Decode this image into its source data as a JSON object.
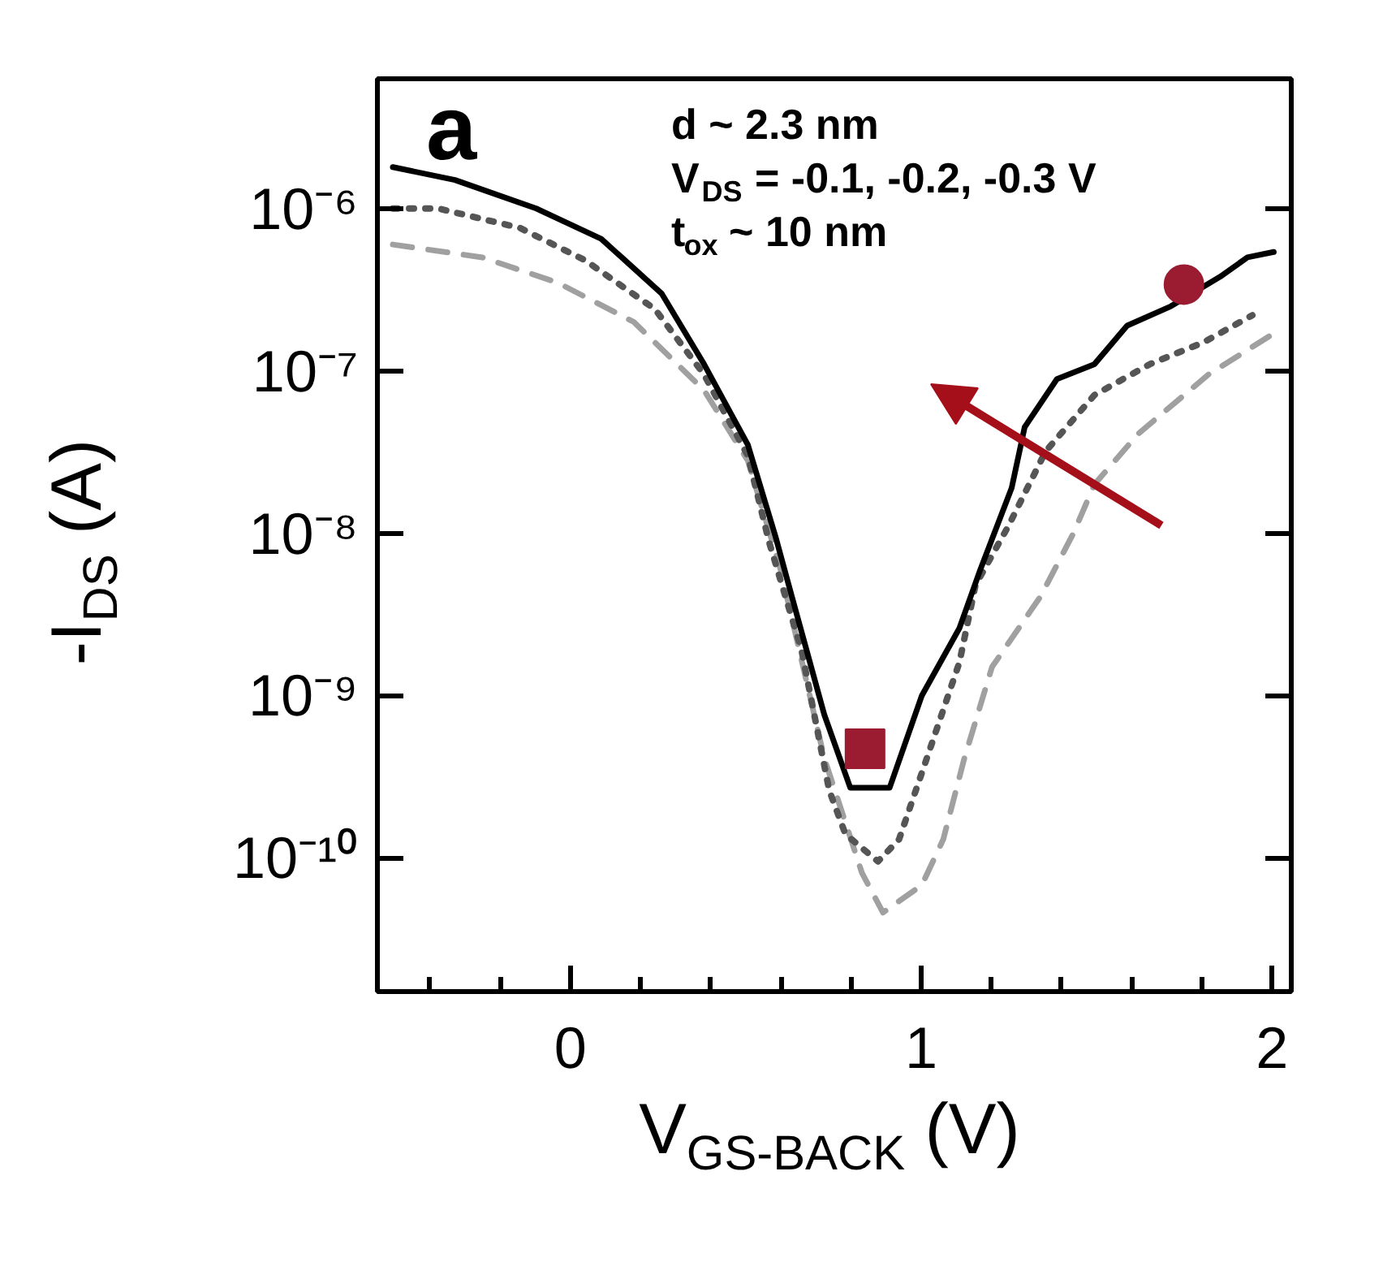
{
  "chart_data": {
    "type": "line",
    "title": "a",
    "xlabel": "V$_{GS-BACK}$ (V)",
    "ylabel": "-I$_{DS}$ (A)",
    "annotations": [
      "d ~ 2.3 nm",
      "V$_{DS}$ = -0.1, -0.2, -0.3 V",
      "t$_{ox}$ ~ 10 nm"
    ],
    "log": "y",
    "grid": false,
    "xlim": [
      -0.55,
      2.055
    ],
    "ylim": [
      1.5e-11,
      6.3e-06
    ],
    "xticks": [
      {
        "value": -0.4,
        "label": null
      },
      {
        "value": -0.2,
        "label": null
      },
      0,
      {
        "value": 0.2,
        "label": null
      },
      {
        "value": 0.4,
        "label": null
      },
      {
        "value": 0.6,
        "label": null
      },
      {
        "value": 0.8,
        "label": null
      },
      1,
      {
        "value": 1.2,
        "label": null
      },
      {
        "value": 1.4,
        "label": null
      },
      {
        "value": 1.6,
        "label": null
      },
      {
        "value": 1.8,
        "label": null
      },
      2
    ],
    "yticks": [
      {
        "value": 1e-10,
        "label": "10⁻¹⁰"
      },
      {
        "value": 1e-09,
        "label": "10⁻⁹"
      },
      {
        "value": 1e-08,
        "label": "10⁻⁸"
      },
      {
        "value": 1e-07,
        "label": "10⁻⁷"
      },
      {
        "value": 1e-06,
        "label": "10⁻⁶"
      }
    ],
    "series": [
      {
        "color": "#a0a0a0",
        "line_style": "dashed",
        "x": [
          -0.506,
          -0.251,
          -0.037,
          0.181,
          0.381,
          0.506,
          0.599,
          0.724,
          0.831,
          0.891,
          1.002,
          1.063,
          1.123,
          1.202,
          1.341,
          1.434,
          1.494,
          1.619,
          1.819,
          2.005
        ],
        "values": [
          6e-07,
          5e-07,
          3.5e-07,
          2e-07,
          7.6e-08,
          2.8e-08,
          6e-09,
          4.1e-10,
          8.1e-11,
          4.6e-11,
          6.8e-11,
          1.3e-10,
          4.1e-10,
          1.5e-09,
          4.1e-09,
          1e-08,
          2e-08,
          4.1e-08,
          9.5e-08,
          1.7e-07
        ]
      },
      {
        "color": "#555555",
        "line_style": "dotted",
        "x": [
          -0.506,
          -0.376,
          -0.144,
          0.042,
          0.241,
          0.381,
          0.506,
          0.566,
          0.659,
          0.738,
          0.784,
          0.877,
          0.937,
          1.016,
          1.109,
          1.155,
          1.248,
          1.355,
          1.494,
          1.652,
          1.805,
          1.944
        ],
        "values": [
          1e-06,
          1e-06,
          7.6e-07,
          4.8e-07,
          2.4e-07,
          9.5e-08,
          3e-08,
          8.9e-09,
          1.9e-09,
          2.6e-10,
          1.4e-10,
          9.5e-11,
          1.3e-10,
          4.1e-10,
          1.6e-09,
          4.8e-09,
          1.1e-08,
          3.2e-08,
          7.1e-08,
          1.1e-07,
          1.5e-07,
          2.2e-07
        ]
      },
      {
        "color": "#000000",
        "line_style": "solid",
        "x": [
          -0.506,
          -0.329,
          -0.097,
          0.088,
          0.26,
          0.381,
          0.506,
          0.585,
          0.631,
          0.724,
          0.798,
          0.91,
          1.002,
          1.109,
          1.169,
          1.258,
          1.295,
          1.387,
          1.494,
          1.587,
          1.712,
          1.852,
          1.93,
          2.005
        ],
        "values": [
          1.8e-06,
          1.5e-06,
          1e-06,
          6.5e-07,
          3e-07,
          1.1e-07,
          3.5e-08,
          9.5e-09,
          4.1e-09,
          7.6e-10,
          2.7e-10,
          2.7e-10,
          1e-09,
          2.6e-09,
          6e-09,
          1.9e-08,
          4.5e-08,
          8.9e-08,
          1.1e-07,
          1.9e-07,
          2.5e-07,
          3.8e-07,
          5e-07,
          5.4e-07
        ]
      },
      {
        "type": "scatter",
        "color": "#9b1b30",
        "marker": "square",
        "x": [
          0.84
        ],
        "values": [
          4.7e-10
        ]
      },
      {
        "type": "scatter",
        "color": "#9b1b30",
        "marker": "circle",
        "x": [
          1.749
        ],
        "values": [
          3.4e-07
        ]
      }
    ]
  }
}
